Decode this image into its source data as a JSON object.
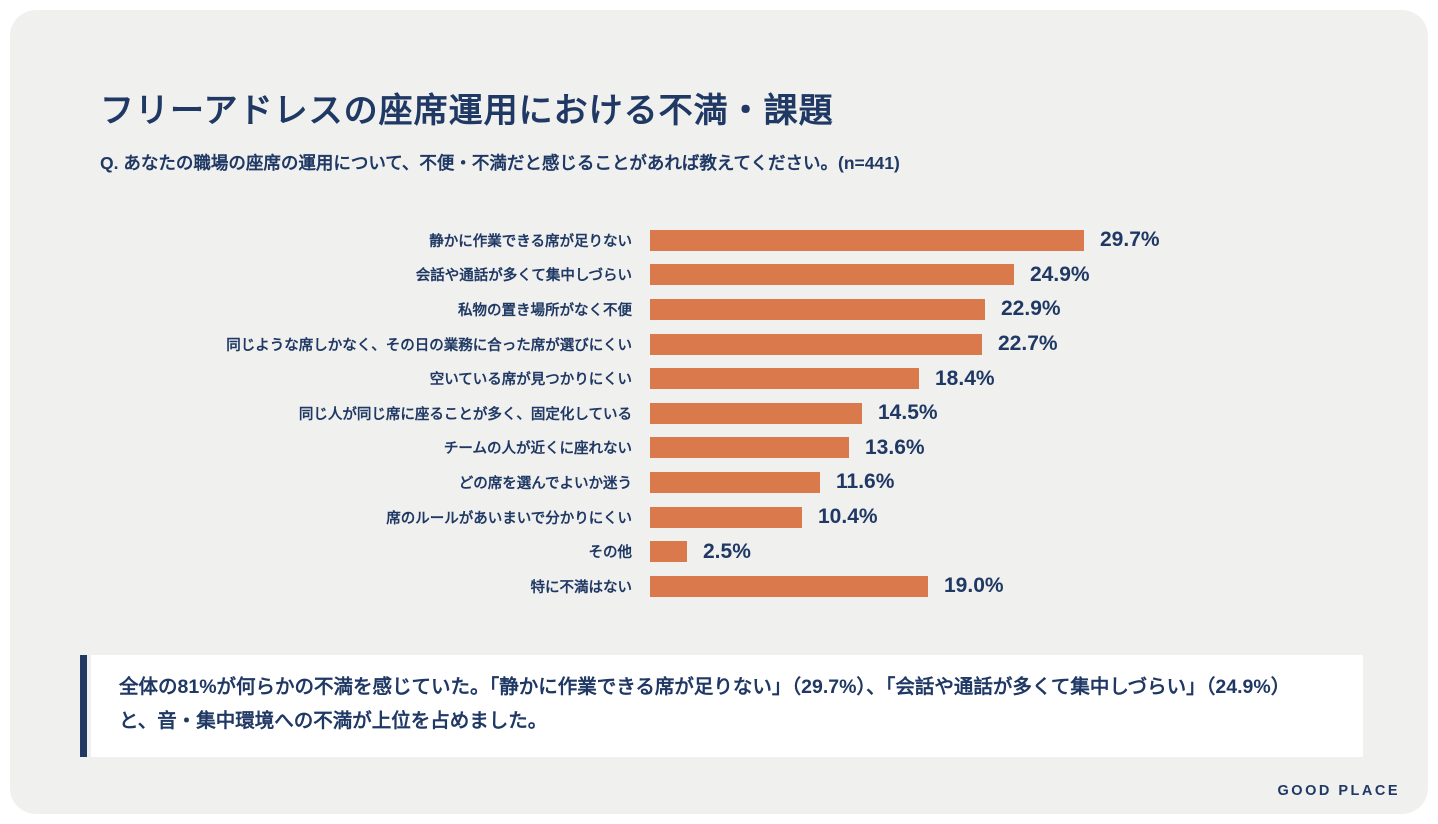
{
  "page": {
    "title": "フリーアドレスの座席運用における不満・課題",
    "question": "Q. あなたの職場の座席の運用について、不便・不満だと感じることがあれば教えてください。(n=441)",
    "summary": "全体の81%が何らかの不満を感じていた。「静かに作業できる席が足りない」（29.7%）、「会話や通話が多くて集中しづらい」（24.9%）と、音・集中環境への不満が上位を占めました。",
    "logo": "GOOD PLACE"
  },
  "colors": {
    "bar": "#D9794C",
    "navy": "#1F3864",
    "card_bg": "#F0F0EE",
    "box_bg": "#FFFFFF"
  },
  "chart_data": {
    "type": "bar",
    "orientation": "horizontal",
    "unit": "%",
    "title": "フリーアドレスの座席運用における不満・課題",
    "sample_size": "n=441",
    "xlim": [
      0,
      30
    ],
    "grid": false,
    "legend": false,
    "value_label_format": "0.0%",
    "categories": [
      "静かに作業できる席が足りない",
      "会話や通話が多くて集中しづらい",
      "私物の置き場所がなく不便",
      "同じような席しかなく、その日の業務に合った席が選びにくい",
      "空いている席が見つかりにくい",
      "同じ人が同じ席に座ることが多く、固定化している",
      "チームの人が近くに座れない",
      "どの席を選んでよいか迷う",
      "席のルールがあいまいで分かりにくい",
      "その他",
      "特に不満はない"
    ],
    "values": [
      29.7,
      24.9,
      22.9,
      22.7,
      18.4,
      14.5,
      13.6,
      11.6,
      10.4,
      2.5,
      19.0
    ]
  }
}
